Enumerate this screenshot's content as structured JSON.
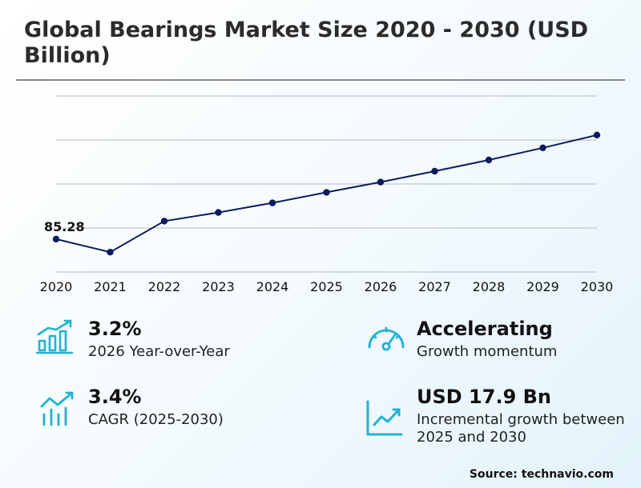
{
  "title": "Global Bearings Market Size 2020 - 2030 (USD Billion)",
  "chart_data": {
    "type": "line",
    "x": [
      "2020",
      "2021",
      "2022",
      "2023",
      "2024",
      "2025",
      "2026",
      "2027",
      "2028",
      "2029",
      "2030"
    ],
    "series": [
      {
        "values": [
          85.28,
          81.2,
          90.9,
          93.6,
          96.6,
          99.9,
          103.1,
          106.5,
          110.0,
          113.8,
          117.8
        ]
      }
    ],
    "data_labels": [
      "85.28"
    ],
    "ylim": [
      75,
      130
    ],
    "grid": true,
    "line_color": "#0d1b5e"
  },
  "stats": [
    {
      "value": "3.2%",
      "desc": "2026 Year-over-Year",
      "icon": "bar-chart-up-icon"
    },
    {
      "value": "Accelerating",
      "desc": "Growth momentum",
      "icon": "gauge-icon"
    },
    {
      "value": "3.4%",
      "desc": "CAGR (2025-2030)",
      "icon": "trend-up-bars-icon"
    },
    {
      "value": "USD 17.9 Bn",
      "desc": "Incremental growth between 2025 and 2030",
      "icon": "line-chart-up-icon"
    }
  ],
  "accent_color": "#1fb3d1",
  "source": "Source: technavio.com"
}
